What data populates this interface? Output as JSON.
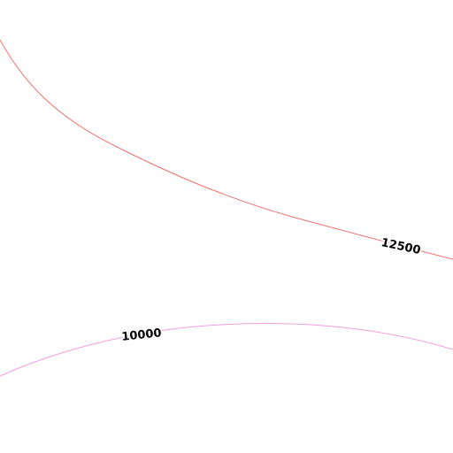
{
  "contours": [
    {
      "label": "12500",
      "color": "#f07070"
    },
    {
      "label": "10000",
      "color": "#f0a0e0"
    }
  ]
}
